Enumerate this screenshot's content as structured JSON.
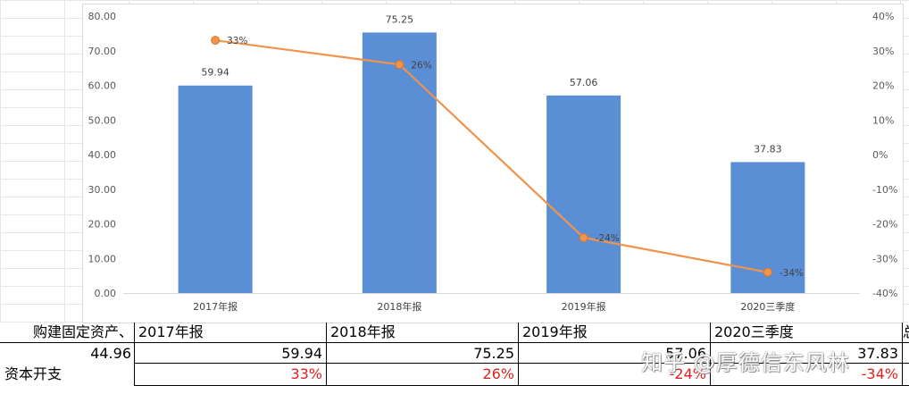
{
  "chart_data": {
    "type": "bar",
    "categories": [
      "2017年报",
      "2018年报",
      "2019年报",
      "2020三季度"
    ],
    "series": [
      {
        "type": "bar",
        "values": [
          59.94,
          75.25,
          57.06,
          37.83
        ],
        "data_labels": [
          "59.94",
          "75.25",
          "57.06",
          "37.83"
        ],
        "color": "#5B8FD5"
      },
      {
        "type": "line",
        "axis": "right",
        "values": [
          33,
          26,
          -24,
          -34
        ],
        "data_labels": [
          "33%",
          "26%",
          "-24%",
          "-34%"
        ],
        "color": "#F0944D"
      }
    ],
    "ylim": [
      0,
      80
    ],
    "y_ticks": [
      "0.00",
      "10.00",
      "20.00",
      "30.00",
      "40.00",
      "50.00",
      "60.00",
      "70.00",
      "80.00"
    ],
    "y2lim": [
      -40,
      40
    ],
    "y2_ticks": [
      "-40%",
      "-30%",
      "-20%",
      "-10%",
      "0%",
      "10%",
      "20%",
      "30%",
      "40%"
    ],
    "grid": false,
    "legend": "none"
  },
  "table": {
    "header": [
      "购建固定资产、",
      "2017年报",
      "2018年报",
      "2019年报",
      "2020三季度",
      "总"
    ],
    "row1": [
      "44.96",
      "59.94",
      "75.25",
      "57.06",
      "37.83"
    ],
    "row2": [
      "资本开支",
      "33%",
      "26%",
      "-24%",
      "-34%"
    ]
  },
  "watermark": "知乎 @厚德信东风林"
}
